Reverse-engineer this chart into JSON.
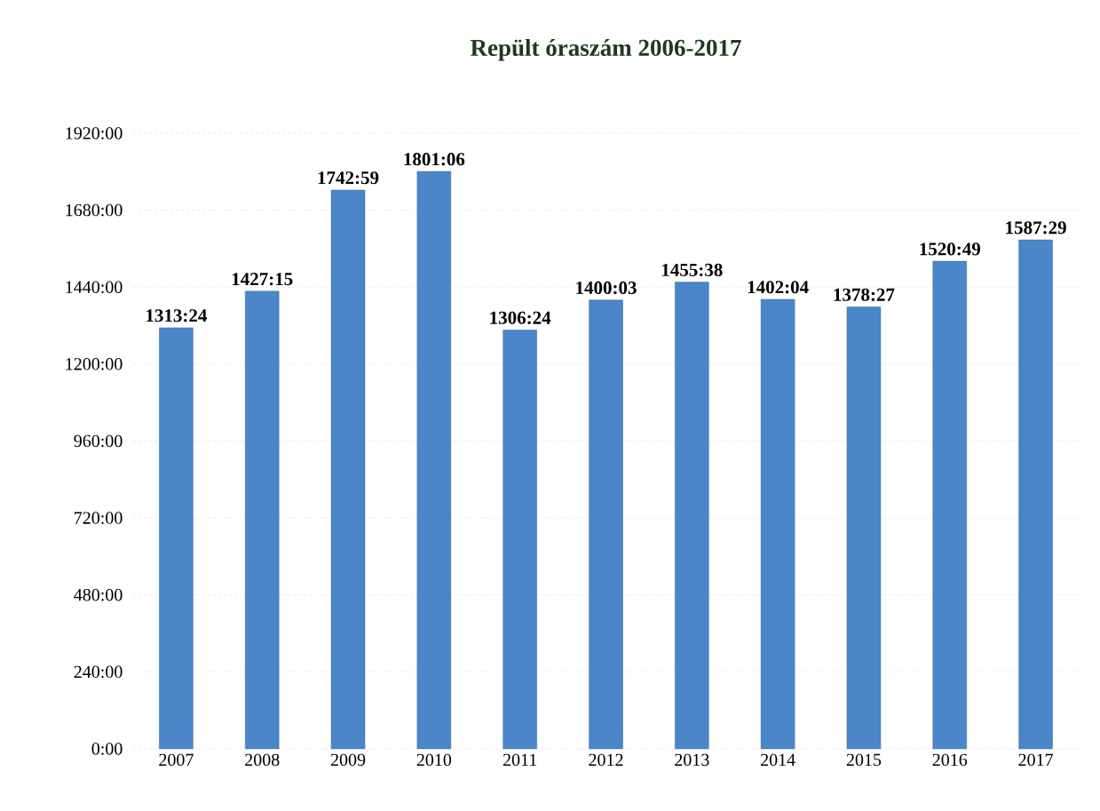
{
  "chart_data": {
    "type": "bar",
    "title": "Repült óraszám 2006-2017",
    "categories": [
      "2007",
      "2008",
      "2009",
      "2010",
      "2011",
      "2012",
      "2013",
      "2014",
      "2015",
      "2016",
      "2017"
    ],
    "values": [
      1313.4,
      1427.25,
      1742.983,
      1801.1,
      1306.4,
      1400.05,
      1455.633,
      1402.067,
      1378.45,
      1520.817,
      1587.483
    ],
    "value_labels": [
      "1313:24",
      "1427:15",
      "1742:59",
      "1801:06",
      "1306:24",
      "1400:03",
      "1455:38",
      "1402:04",
      "1378:27",
      "1520:49",
      "1587:29"
    ],
    "color": "#4a86c8",
    "ylim": [
      0,
      1920
    ],
    "yticks": [
      {
        "value": 0,
        "label": "0:00"
      },
      {
        "value": 240,
        "label": "240:00"
      },
      {
        "value": 480,
        "label": "480:00"
      },
      {
        "value": 720,
        "label": "720:00"
      },
      {
        "value": 960,
        "label": "960:00"
      },
      {
        "value": 1200,
        "label": "1200:00"
      },
      {
        "value": 1440,
        "label": "1440:00"
      },
      {
        "value": 1680,
        "label": "1680:00"
      },
      {
        "value": 1920,
        "label": "1920:00"
      }
    ],
    "grid": "y"
  }
}
